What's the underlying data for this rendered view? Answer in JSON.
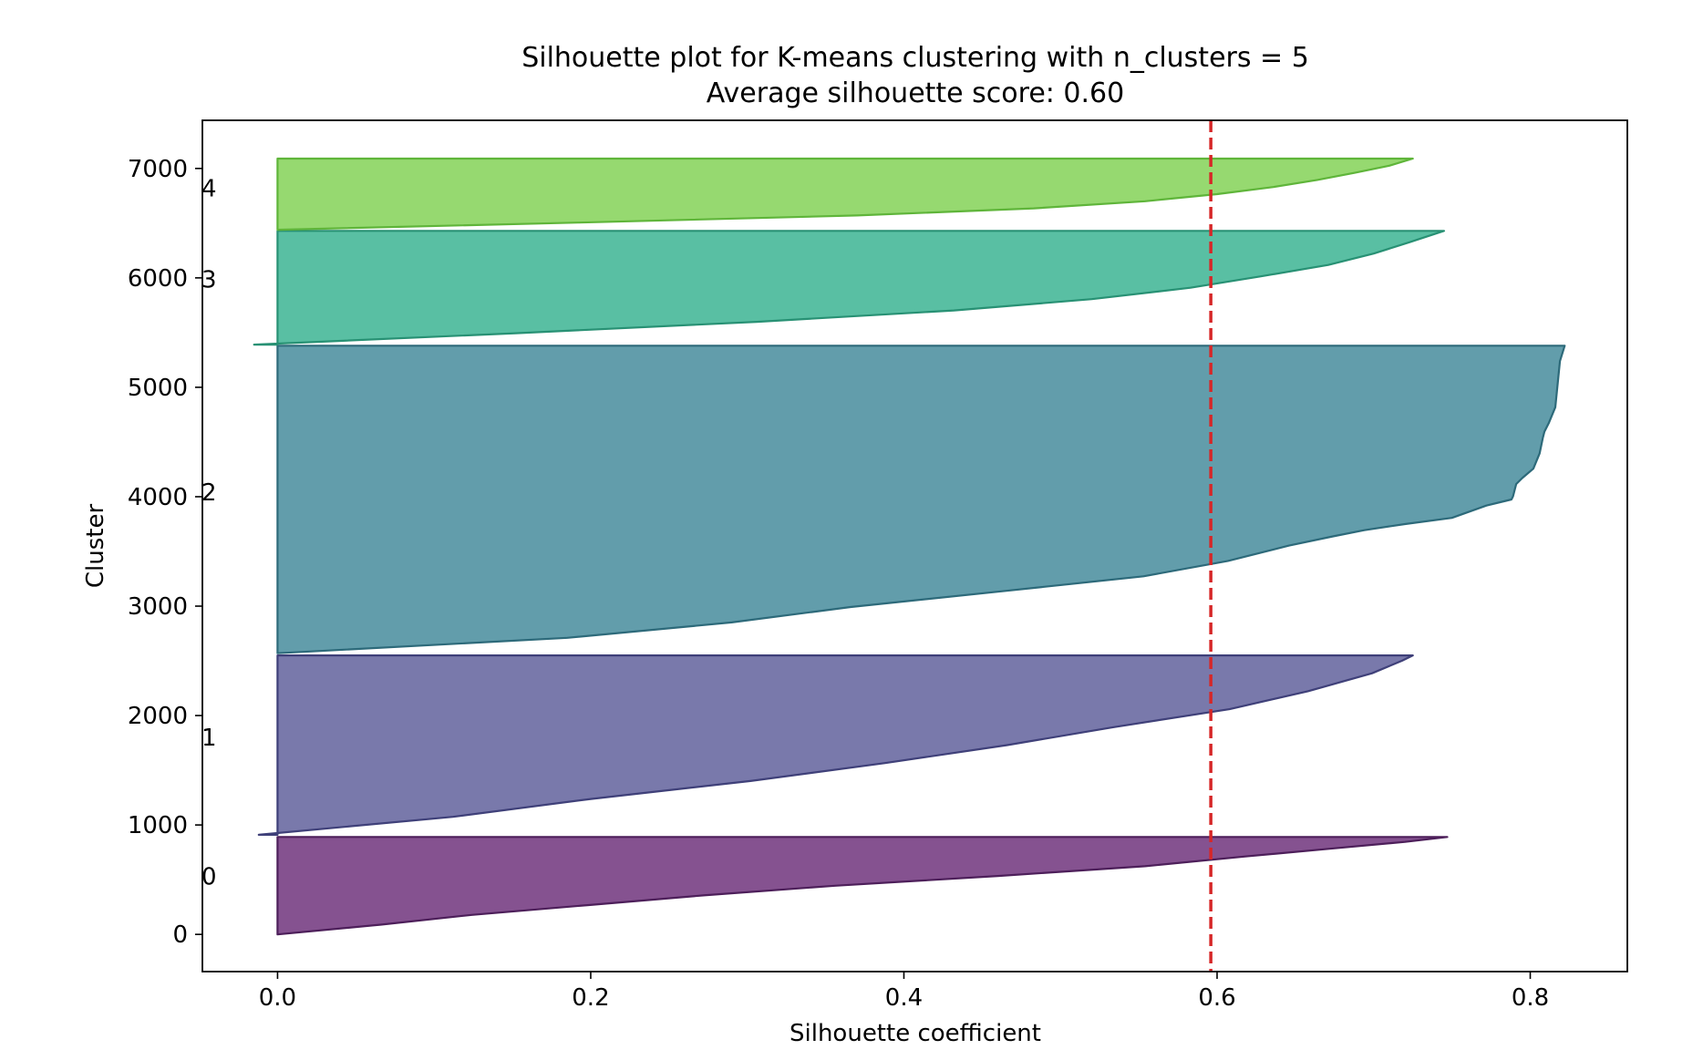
{
  "chart_data": {
    "type": "area",
    "title": "Silhouette plot for K-means clustering with n_clusters = 5",
    "subtitle": "Average silhouette score: 0.60",
    "xlabel": "Silhouette coefficient",
    "ylabel": "Cluster",
    "xlim": [
      -0.048,
      0.862
    ],
    "ylim": [
      -340,
      7440
    ],
    "xticks": [
      0.0,
      0.2,
      0.4,
      0.6,
      0.8
    ],
    "xtick_labels": [
      "0.0",
      "0.2",
      "0.4",
      "0.6",
      "0.8"
    ],
    "yticks": [
      0,
      1000,
      2000,
      3000,
      4000,
      5000,
      6000,
      7000
    ],
    "ytick_labels": [
      "0",
      "1000",
      "2000",
      "3000",
      "4000",
      "5000",
      "6000",
      "7000"
    ],
    "grid": false,
    "average_score": 0.596,
    "average_line_color": "#d62728",
    "clusters": [
      {
        "label": "0",
        "y_lower": 0,
        "y_upper": 890,
        "label_y": 530,
        "fill": "#6a2c78",
        "edge": "#4d1f5a",
        "profile": [
          [
            0,
            0.0
          ],
          [
            0.1,
            0.066
          ],
          [
            0.2,
            0.124
          ],
          [
            0.3,
            0.198
          ],
          [
            0.4,
            0.272
          ],
          [
            0.5,
            0.356
          ],
          [
            0.6,
            0.46
          ],
          [
            0.7,
            0.554
          ],
          [
            0.8,
            0.618
          ],
          [
            0.88,
            0.672
          ],
          [
            0.95,
            0.72
          ],
          [
            1.0,
            0.747
          ]
        ]
      },
      {
        "label": "1",
        "y_lower": 910,
        "y_upper": 2550,
        "label_y": 1800,
        "fill": "#5c5c98",
        "edge": "#3f4079",
        "profile": [
          [
            0,
            -0.012
          ],
          [
            0.1,
            0.112
          ],
          [
            0.2,
            0.2
          ],
          [
            0.3,
            0.302
          ],
          [
            0.4,
            0.388
          ],
          [
            0.5,
            0.466
          ],
          [
            0.6,
            0.534
          ],
          [
            0.7,
            0.608
          ],
          [
            0.8,
            0.658
          ],
          [
            0.9,
            0.699
          ],
          [
            0.97,
            0.718
          ],
          [
            1.0,
            0.725
          ]
        ]
      },
      {
        "label": "2",
        "y_lower": 2570,
        "y_upper": 5380,
        "label_y": 4040,
        "fill": "#3f8798",
        "edge": "#2d6a7a",
        "profile": [
          [
            0,
            0.0
          ],
          [
            0.05,
            0.185
          ],
          [
            0.1,
            0.29
          ],
          [
            0.15,
            0.366
          ],
          [
            0.2,
            0.46
          ],
          [
            0.25,
            0.553
          ],
          [
            0.3,
            0.607
          ],
          [
            0.35,
            0.646
          ],
          [
            0.38,
            0.674
          ],
          [
            0.4,
            0.694
          ],
          [
            0.42,
            0.72
          ],
          [
            0.44,
            0.75
          ],
          [
            0.48,
            0.772
          ],
          [
            0.5,
            0.788
          ],
          [
            0.51,
            0.789
          ],
          [
            0.55,
            0.791
          ],
          [
            0.57,
            0.795
          ],
          [
            0.6,
            0.802
          ],
          [
            0.65,
            0.806
          ],
          [
            0.7,
            0.808
          ],
          [
            0.72,
            0.809
          ],
          [
            0.75,
            0.812
          ],
          [
            0.8,
            0.816
          ],
          [
            0.85,
            0.817
          ],
          [
            0.9,
            0.818
          ],
          [
            0.95,
            0.819
          ],
          [
            1.0,
            0.822
          ]
        ]
      },
      {
        "label": "3",
        "y_lower": 5390,
        "y_upper": 6430,
        "label_y": 5985,
        "fill": "#34b18f",
        "edge": "#289174",
        "profile": [
          [
            0,
            -0.015
          ],
          [
            0.1,
            0.152
          ],
          [
            0.2,
            0.306
          ],
          [
            0.3,
            0.432
          ],
          [
            0.4,
            0.52
          ],
          [
            0.5,
            0.583
          ],
          [
            0.6,
            0.628
          ],
          [
            0.7,
            0.671
          ],
          [
            0.8,
            0.7
          ],
          [
            0.9,
            0.723
          ],
          [
            1.0,
            0.745
          ]
        ]
      },
      {
        "label": "4",
        "y_lower": 6440,
        "y_upper": 7090,
        "label_y": 6820,
        "fill": "#7fd151",
        "edge": "#5fb53a",
        "profile": [
          [
            0,
            0.0
          ],
          [
            0.1,
            0.192
          ],
          [
            0.2,
            0.37
          ],
          [
            0.3,
            0.483
          ],
          [
            0.4,
            0.554
          ],
          [
            0.5,
            0.6
          ],
          [
            0.6,
            0.636
          ],
          [
            0.7,
            0.664
          ],
          [
            0.8,
            0.688
          ],
          [
            0.9,
            0.71
          ],
          [
            1.0,
            0.725
          ]
        ]
      }
    ]
  }
}
